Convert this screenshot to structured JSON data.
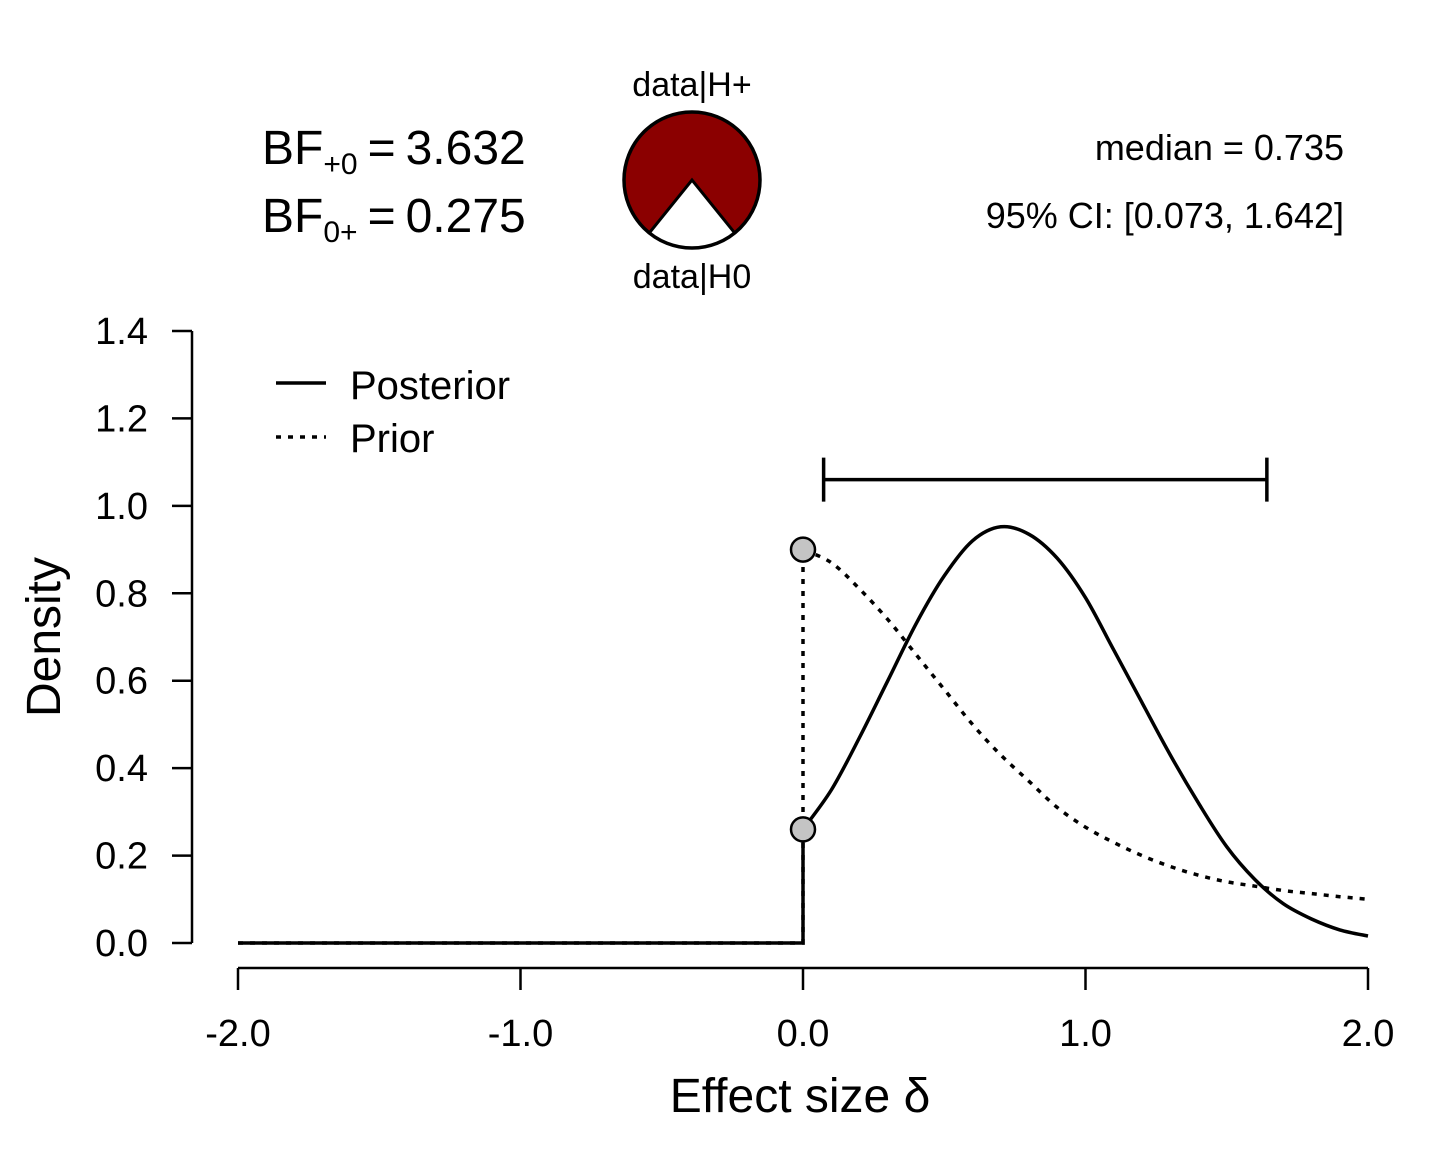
{
  "header": {
    "bf_plus0": {
      "prefix": "BF",
      "sub": "+0",
      "op": "=",
      "value": "3.632"
    },
    "bf_0plus": {
      "prefix": "BF",
      "sub": "0+",
      "op": "=",
      "value": "0.275"
    },
    "pie_top_label": "data|H+",
    "pie_bottom_label": "data|H0",
    "pie_h_plus_share": 0.784,
    "median_text": "median = 0.735",
    "ci_text": "95% CI: [0.073, 1.642]"
  },
  "colors": {
    "pie_h_plus": "#8b0000",
    "pie_h0": "#ffffff",
    "point_fill": "#c4c4c4"
  },
  "chart_data": {
    "type": "line",
    "xlabel": "Effect size δ",
    "ylabel": "Density",
    "xlim": [
      -2.0,
      2.0
    ],
    "ylim": [
      0.0,
      1.4
    ],
    "xticks": [
      "-2.0",
      "-1.0",
      "0.0",
      "1.0",
      "2.0"
    ],
    "yticks": [
      "0.0",
      "0.2",
      "0.4",
      "0.6",
      "0.8",
      "1.0",
      "1.2",
      "1.4"
    ],
    "legend": {
      "position": "top-left",
      "entries": [
        {
          "label": "Posterior",
          "style": "solid"
        },
        {
          "label": "Prior",
          "style": "dotted"
        }
      ]
    },
    "series": [
      {
        "name": "Posterior",
        "style": "solid",
        "x": [
          -2.0,
          0.0,
          0.0,
          0.1,
          0.2,
          0.3,
          0.4,
          0.5,
          0.6,
          0.7,
          0.8,
          0.9,
          1.0,
          1.1,
          1.2,
          1.3,
          1.4,
          1.5,
          1.6,
          1.7,
          1.8,
          1.9,
          2.0
        ],
        "y": [
          0.0,
          0.0,
          0.26,
          0.35,
          0.47,
          0.6,
          0.73,
          0.84,
          0.92,
          0.952,
          0.935,
          0.88,
          0.79,
          0.67,
          0.55,
          0.43,
          0.32,
          0.22,
          0.145,
          0.09,
          0.055,
          0.03,
          0.016
        ]
      },
      {
        "name": "Prior",
        "style": "dotted",
        "x": [
          -2.0,
          0.0,
          0.0,
          0.1,
          0.2,
          0.3,
          0.4,
          0.5,
          0.6,
          0.7,
          0.8,
          0.9,
          1.0,
          1.1,
          1.2,
          1.3,
          1.4,
          1.5,
          1.6,
          1.7,
          1.8,
          1.9,
          2.0
        ],
        "y": [
          0.0,
          0.0,
          0.9,
          0.87,
          0.81,
          0.74,
          0.66,
          0.58,
          0.5,
          0.43,
          0.37,
          0.31,
          0.265,
          0.23,
          0.2,
          0.175,
          0.155,
          0.14,
          0.13,
          0.12,
          0.113,
          0.106,
          0.1
        ]
      }
    ],
    "points": [
      {
        "x": 0.0,
        "y": 0.9
      },
      {
        "x": 0.0,
        "y": 0.26
      }
    ],
    "credible_interval": {
      "lower": 0.073,
      "upper": 1.642,
      "y": 1.06
    }
  }
}
